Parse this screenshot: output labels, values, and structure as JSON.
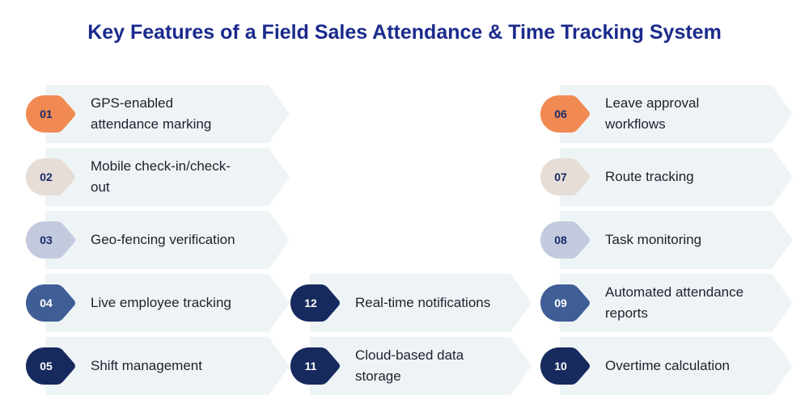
{
  "title": "Key Features of a Field Sales Attendance & Time Tracking System",
  "colors": {
    "title": "#1b2a8c",
    "card_fill": "#eef4f6",
    "badge_orange": "#f08a52",
    "badge_beige": "#e6ddd6",
    "badge_lavender": "#c3cade",
    "badge_blue": "#3f5e96",
    "badge_navy": "#172a5e"
  },
  "features": [
    {
      "num": "01",
      "line1": "GPS-enabled",
      "line2": "attendance marking",
      "color": "#f08a52",
      "text_color": "#1b2a6b"
    },
    {
      "num": "02",
      "line1": "Mobile check-in/check-",
      "line2": "out",
      "color": "#e6ddd6",
      "text_color": "#1b2a6b"
    },
    {
      "num": "03",
      "line1": "Geo-fencing verification",
      "line2": "",
      "color": "#c3cade",
      "text_color": "#1b2a6b"
    },
    {
      "num": "04",
      "line1": "Live employee tracking",
      "line2": "",
      "color": "#3f5e96",
      "text_color": "#ffffff"
    },
    {
      "num": "05",
      "line1": "Shift management",
      "line2": "",
      "color": "#172a5e",
      "text_color": "#ffffff"
    },
    {
      "num": "12",
      "line1": "Real-time notifications",
      "line2": "",
      "color": "#172a5e",
      "text_color": "#ffffff"
    },
    {
      "num": "11",
      "line1": "Cloud-based data",
      "line2": "storage",
      "color": "#172a5e",
      "text_color": "#ffffff"
    },
    {
      "num": "06",
      "line1": "Leave approval",
      "line2": "workflows",
      "color": "#f08a52",
      "text_color": "#1b2a6b"
    },
    {
      "num": "07",
      "line1": "Route tracking",
      "line2": "",
      "color": "#e6ddd6",
      "text_color": "#1b2a6b"
    },
    {
      "num": "08",
      "line1": "Task monitoring",
      "line2": "",
      "color": "#c3cade",
      "text_color": "#1b2a6b"
    },
    {
      "num": "09",
      "line1": "Automated attendance",
      "line2": "reports",
      "color": "#3f5e96",
      "text_color": "#ffffff"
    },
    {
      "num": "10",
      "line1": "Overtime calculation",
      "line2": "",
      "color": "#172a5e",
      "text_color": "#ffffff"
    }
  ]
}
